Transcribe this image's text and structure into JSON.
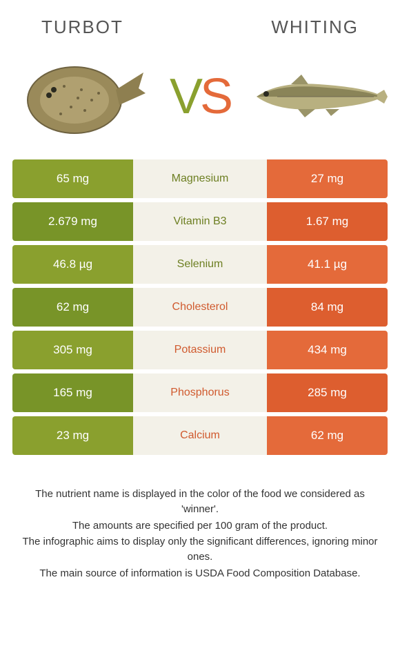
{
  "left_name": "TURBOT",
  "right_name": "WHITING",
  "vs_v": "V",
  "vs_s": "S",
  "colors": {
    "green1": "#8aa02e",
    "green2": "#789428",
    "orange1": "#e46a3a",
    "orange2": "#dd5e2f",
    "mid_bg": "#f3f1e8",
    "label_green": "#6d7f22",
    "label_orange": "#d05a2e"
  },
  "rows": [
    {
      "label": "Magnesium",
      "left": "65 mg",
      "right": "27 mg",
      "winner": "left"
    },
    {
      "label": "Vitamin B3",
      "left": "2.679 mg",
      "right": "1.67 mg",
      "winner": "left"
    },
    {
      "label": "Selenium",
      "left": "46.8 µg",
      "right": "41.1 µg",
      "winner": "left"
    },
    {
      "label": "Cholesterol",
      "left": "62 mg",
      "right": "84 mg",
      "winner": "right"
    },
    {
      "label": "Potassium",
      "left": "305 mg",
      "right": "434 mg",
      "winner": "right"
    },
    {
      "label": "Phosphorus",
      "left": "165 mg",
      "right": "285 mg",
      "winner": "right"
    },
    {
      "label": "Calcium",
      "left": "23 mg",
      "right": "62 mg",
      "winner": "right"
    }
  ],
  "footer": [
    "The nutrient name is displayed in the color of the food we considered as 'winner'.",
    "The amounts are specified per 100 gram of the product.",
    "The infographic aims to display only the significant differences, ignoring minor ones.",
    "The main source of information is USDA Food Composition Database."
  ]
}
